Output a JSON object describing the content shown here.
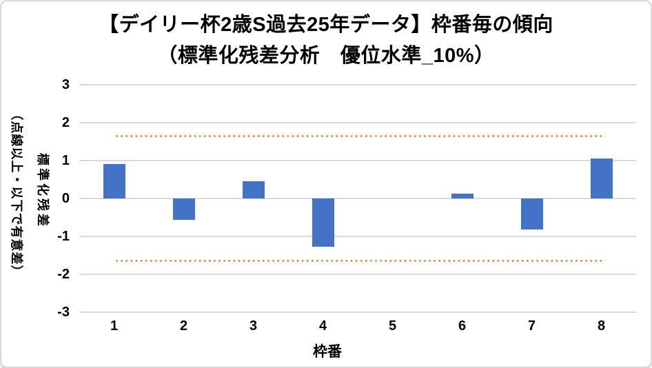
{
  "chart": {
    "title_line1": "【デイリー杯2歳S過去25年データ】枠番毎の傾向",
    "title_line2": "（標準化残差分析　優位水準_10%）"
  },
  "chart_data": {
    "type": "bar",
    "title": "【デイリー杯2歳S過去25年データ】枠番毎の傾向（標準化残差分析　優位水準_10%）",
    "categories": [
      "1",
      "2",
      "3",
      "4",
      "5",
      "6",
      "7",
      "8"
    ],
    "values": [
      0.91,
      -0.56,
      0.46,
      -1.27,
      0.0,
      0.13,
      -0.81,
      1.05
    ],
    "xlabel": "枠番",
    "ylabel_main": "標準化残差",
    "ylabel_sub": "（点線以上・以下で有意差）",
    "ylim": [
      -3,
      3
    ],
    "yticks": [
      "3",
      "2",
      "1",
      "0",
      "-1",
      "-2",
      "-3"
    ],
    "ytick_values": [
      3,
      2,
      1,
      0,
      -1,
      -2,
      -3
    ],
    "threshold_lines": [
      1.645,
      -1.645
    ],
    "threshold_style": "dotted",
    "significance_level": "10%",
    "grid": true,
    "legend": "none",
    "bar_color": "#4472C4",
    "threshold_color": "#ED7D31",
    "gridline_color": "#D9D9D9"
  }
}
